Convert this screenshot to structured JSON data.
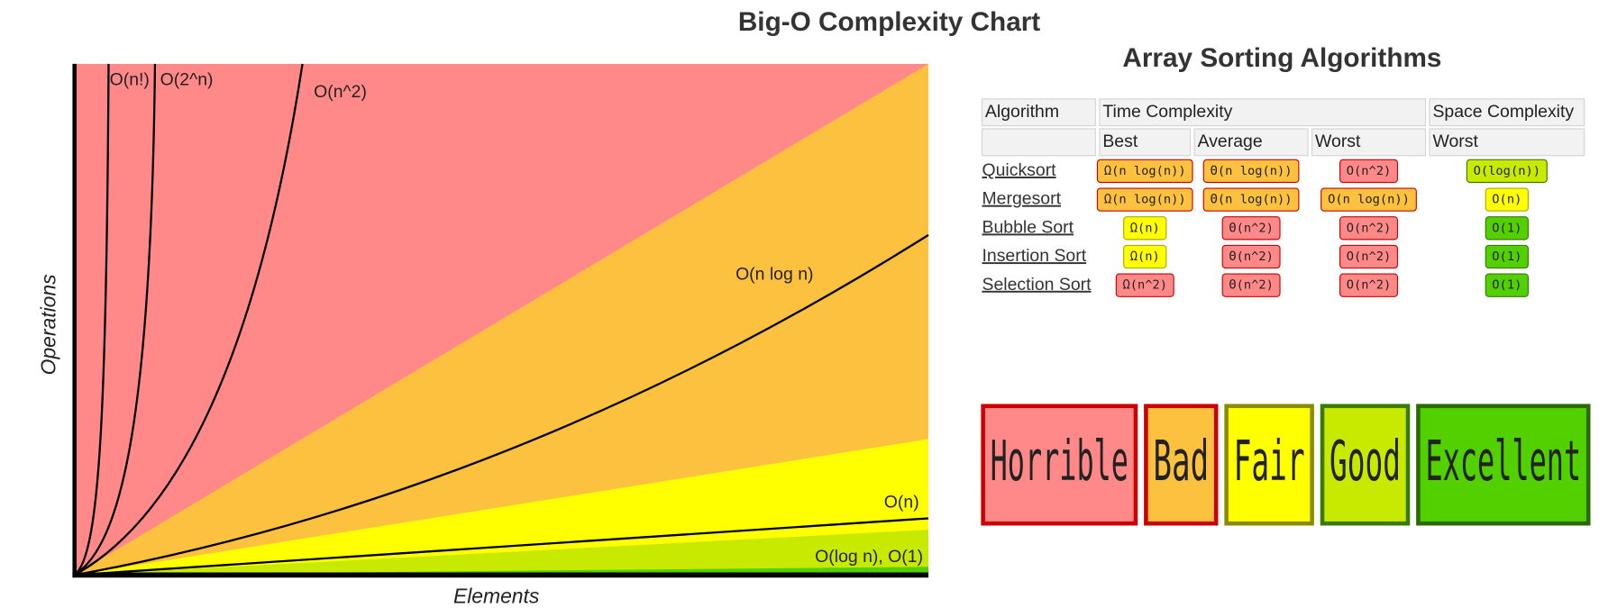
{
  "title": "Big-O Complexity Chart",
  "chart": {
    "y_label": "Operations",
    "x_label": "Elements",
    "curve_labels": [
      "O(n!)",
      "O(2^n)",
      "O(n^2)",
      "O(n log n)",
      "O(n)",
      "O(log n), O(1)"
    ]
  },
  "table": {
    "title": "Array Sorting Algorithms",
    "header": [
      "Algorithm",
      "Time Complexity",
      "Space Complexity"
    ],
    "subheader": [
      "Best",
      "Average",
      "Worst",
      "Worst"
    ],
    "rows": [
      {
        "name": "Quicksort",
        "cells": [
          {
            "text": "Ω(n log(n))",
            "color": "#fdc140"
          },
          {
            "text": "Θ(n log(n))",
            "color": "#fdc140"
          },
          {
            "text": "O(n^2)",
            "color": "#ff8989"
          },
          {
            "text": "O(log(n))",
            "color": "#c8ea00"
          }
        ]
      },
      {
        "name": "Mergesort",
        "cells": [
          {
            "text": "Ω(n log(n))",
            "color": "#fdc140"
          },
          {
            "text": "Θ(n log(n))",
            "color": "#fdc140"
          },
          {
            "text": "O(n log(n))",
            "color": "#fdc140"
          },
          {
            "text": "O(n)",
            "color": "#ffff00"
          }
        ]
      },
      {
        "name": "Bubble Sort",
        "cells": [
          {
            "text": "Ω(n)",
            "color": "#ffff00"
          },
          {
            "text": "Θ(n^2)",
            "color": "#ff8989"
          },
          {
            "text": "O(n^2)",
            "color": "#ff8989"
          },
          {
            "text": "O(1)",
            "color": "#53d000"
          }
        ]
      },
      {
        "name": "Insertion Sort",
        "cells": [
          {
            "text": "Ω(n)",
            "color": "#ffff00"
          },
          {
            "text": "Θ(n^2)",
            "color": "#ff8989"
          },
          {
            "text": "O(n^2)",
            "color": "#ff8989"
          },
          {
            "text": "O(1)",
            "color": "#53d000"
          }
        ]
      },
      {
        "name": "Selection Sort",
        "cells": [
          {
            "text": "Ω(n^2)",
            "color": "#ff8989"
          },
          {
            "text": "Θ(n^2)",
            "color": "#ff8989"
          },
          {
            "text": "O(n^2)",
            "color": "#ff8989"
          },
          {
            "text": "O(1)",
            "color": "#53d000"
          }
        ]
      }
    ]
  },
  "legend": [
    {
      "text": "Horrible",
      "color": "#ff8989"
    },
    {
      "text": "Bad",
      "color": "#fdc140"
    },
    {
      "text": "Fair",
      "color": "#ffff00"
    },
    {
      "text": "Good",
      "color": "#c8ea00"
    },
    {
      "text": "Excellent",
      "color": "#53d000"
    }
  ]
}
